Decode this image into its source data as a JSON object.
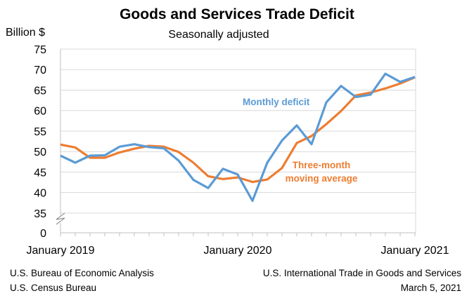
{
  "chart_data": {
    "type": "line",
    "title": "Goods and Services Trade Deficit",
    "subtitle": "Seasonally adjusted",
    "ylabel": "Billion $",
    "ylim": [
      0,
      75
    ],
    "axis_break": [
      0,
      35
    ],
    "yticks": [
      0,
      35,
      40,
      45,
      50,
      55,
      60,
      65,
      70,
      75
    ],
    "xtick_labels": [
      "January 2019",
      "January 2020",
      "January 2021"
    ],
    "x": [
      "2019-01",
      "2019-02",
      "2019-03",
      "2019-04",
      "2019-05",
      "2019-06",
      "2019-07",
      "2019-08",
      "2019-09",
      "2019-10",
      "2019-11",
      "2019-12",
      "2020-01",
      "2020-02",
      "2020-03",
      "2020-04",
      "2020-05",
      "2020-06",
      "2020-07",
      "2020-08",
      "2020-09",
      "2020-10",
      "2020-11",
      "2020-12",
      "2021-01"
    ],
    "grid": true,
    "series": [
      {
        "name": "Monthly deficit",
        "color": "#5b9bd5",
        "values": [
          49.0,
          47.3,
          49.0,
          49.1,
          51.2,
          51.8,
          51.1,
          50.8,
          47.8,
          43.1,
          41.1,
          45.8,
          44.4,
          38.0,
          47.3,
          52.7,
          56.4,
          51.8,
          62.0,
          66.0,
          63.3,
          63.9,
          69.0,
          67.0,
          68.2
        ]
      },
      {
        "name": "Three-month moving average",
        "color": "#ed7d31",
        "values": [
          51.7,
          51.0,
          48.5,
          48.5,
          49.8,
          50.7,
          51.4,
          51.2,
          49.9,
          47.3,
          44.0,
          43.3,
          43.7,
          42.6,
          43.2,
          46.0,
          52.1,
          53.8,
          56.7,
          59.9,
          63.7,
          64.4,
          65.4,
          66.6,
          68.1
        ]
      }
    ],
    "series_labels": {
      "monthly": "Monthly deficit",
      "average_line1": "Three-month",
      "average_line2": "moving average"
    }
  },
  "footer": {
    "left_line1": "U.S. Bureau of Economic Analysis",
    "left_line2": "U.S. Census Bureau",
    "right_line1": "U.S. International Trade in Goods and Services",
    "right_line2": "March 5, 2021"
  }
}
